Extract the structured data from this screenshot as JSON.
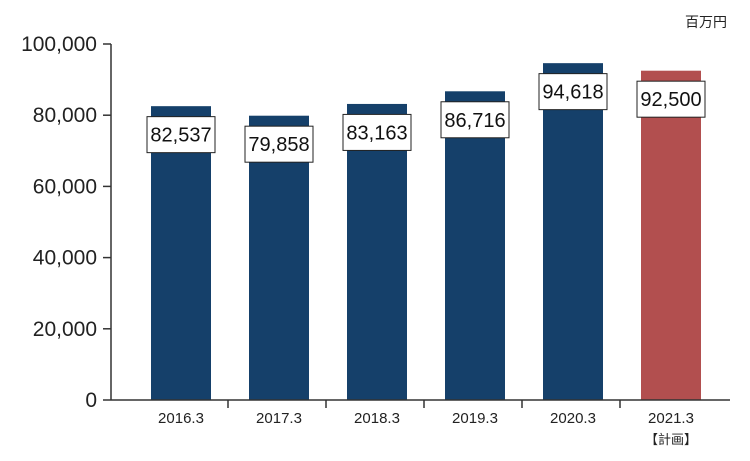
{
  "chart_data": {
    "type": "bar",
    "unit": "百万円",
    "categories": [
      "2016.3",
      "2017.3",
      "2018.3",
      "2019.3",
      "2020.3",
      "2021.3"
    ],
    "category_note": {
      "category": "2021.3",
      "text": "【計画】"
    },
    "values": [
      82537,
      79858,
      83163,
      86716,
      94618,
      92500
    ],
    "value_labels": [
      "82,537",
      "79,858",
      "83,163",
      "86,716",
      "94,618",
      "92,500"
    ],
    "y_ticks": [
      0,
      20000,
      40000,
      60000,
      80000,
      100000
    ],
    "y_tick_labels": [
      "0",
      "20,000",
      "40,000",
      "60,000",
      "80,000",
      "100,000"
    ],
    "ylim": [
      0,
      100000
    ],
    "title": "",
    "xlabel": "",
    "ylabel": "",
    "grid": false,
    "colors": {
      "actual": "#15406a",
      "plan": "#b24f4f",
      "axis": "#333333"
    },
    "plan_index": 5
  }
}
